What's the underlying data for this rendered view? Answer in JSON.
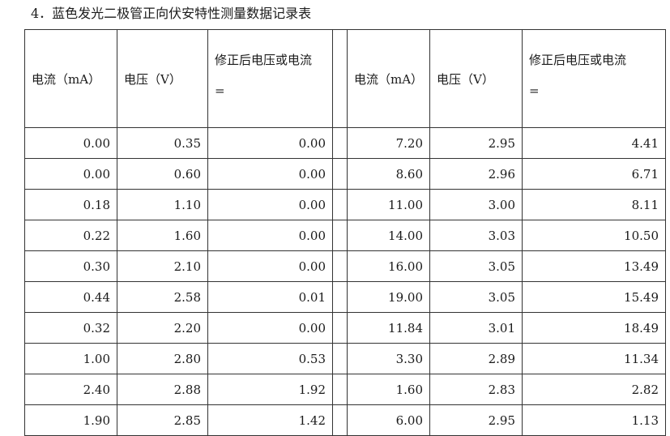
{
  "title": "4．蓝色发光二极管正向伏安特性测量数据记录表",
  "headers": {
    "current": "电流（mA）",
    "voltage": "电压（V）",
    "corrected_line1": "修正后电压或电流",
    "corrected_line2": "="
  },
  "rows": [
    {
      "left": [
        "0.00",
        "0.35",
        "0.00"
      ],
      "right": [
        "7.20",
        "2.95",
        "4.41"
      ]
    },
    {
      "left": [
        "0.00",
        "0.60",
        "0.00"
      ],
      "right": [
        "8.60",
        "2.96",
        "6.71"
      ]
    },
    {
      "left": [
        "0.18",
        "1.10",
        "0.00"
      ],
      "right": [
        "11.00",
        "3.00",
        "8.11"
      ]
    },
    {
      "left": [
        "0.22",
        "1.60",
        "0.00"
      ],
      "right": [
        "14.00",
        "3.03",
        "10.50"
      ]
    },
    {
      "left": [
        "0.30",
        "2.10",
        "0.00"
      ],
      "right": [
        "16.00",
        "3.05",
        "13.49"
      ]
    },
    {
      "left": [
        "0.44",
        "2.58",
        "0.01"
      ],
      "right": [
        "19.00",
        "3.05",
        "15.49"
      ]
    },
    {
      "left": [
        "0.32",
        "2.20",
        "0.00"
      ],
      "right": [
        "11.84",
        "3.01",
        "18.49"
      ]
    },
    {
      "left": [
        "1.00",
        "2.80",
        "0.53"
      ],
      "right": [
        "3.30",
        "2.89",
        "11.34"
      ]
    },
    {
      "left": [
        "2.40",
        "2.88",
        "1.92"
      ],
      "right": [
        "1.60",
        "2.83",
        "2.82"
      ]
    },
    {
      "left": [
        "1.90",
        "2.85",
        "1.42"
      ],
      "right": [
        "6.00",
        "2.95",
        "1.13"
      ]
    }
  ]
}
